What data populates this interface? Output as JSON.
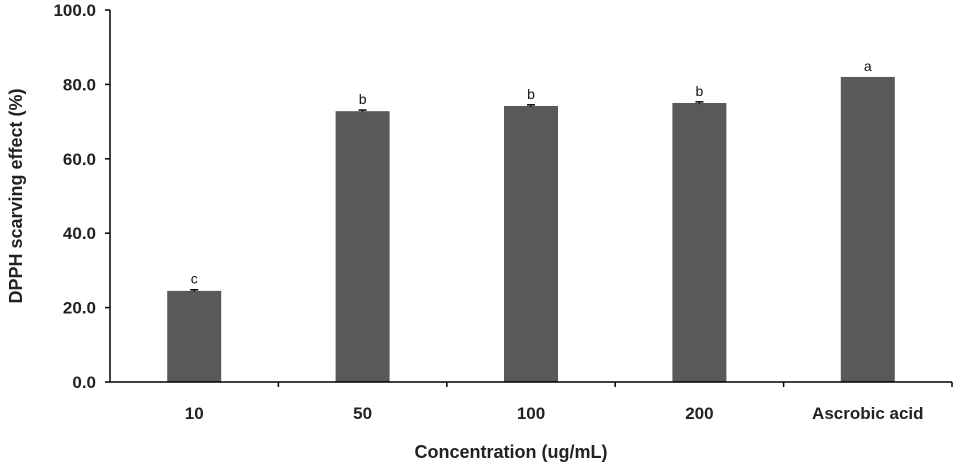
{
  "chart_data": {
    "type": "bar",
    "categories": [
      "10",
      "50",
      "100",
      "200",
      "Ascrobic acid"
    ],
    "values": [
      24.5,
      72.8,
      74.2,
      75.0,
      82.0
    ],
    "errors": [
      0.3,
      0.3,
      0.3,
      0.3,
      0.0
    ],
    "significance_letters": [
      "c",
      "b",
      "b",
      "b",
      "a"
    ],
    "xlabel": "Concentration (ug/mL)",
    "ylabel": "DPPH scarving effect (%)",
    "ylim": [
      0,
      100
    ],
    "y_ticks": [
      "0.0",
      "20.0",
      "40.0",
      "60.0",
      "80.0",
      "100.0"
    ],
    "grid": false,
    "legend": "none",
    "colors": {
      "bar": "#595959",
      "axis": "#000000",
      "error_bar": "#000000"
    }
  }
}
